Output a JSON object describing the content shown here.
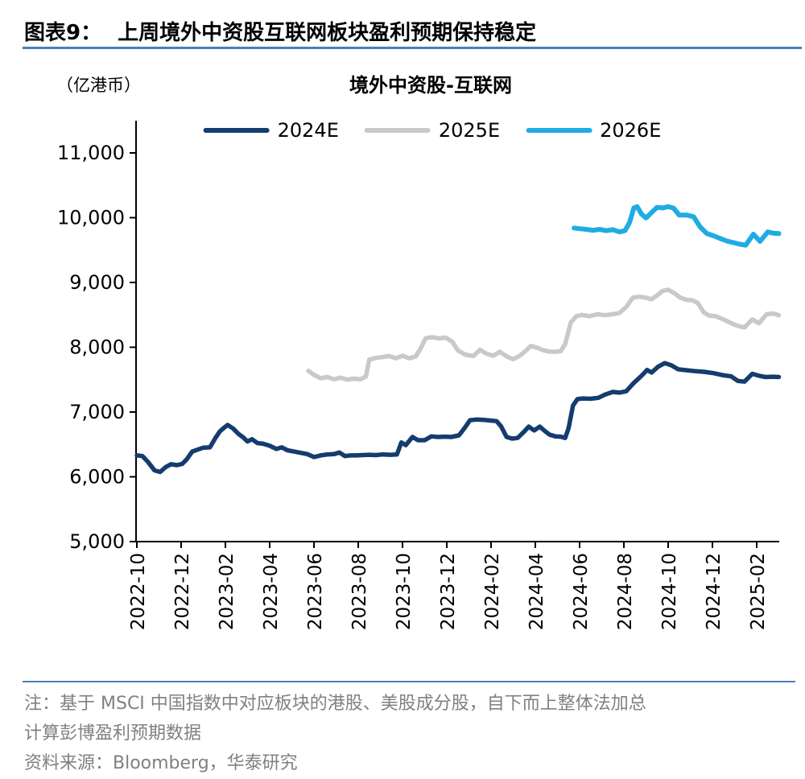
{
  "figure": {
    "label": "图表9：",
    "title": "上周境外中资股互联网板块盈利预期保持稳定"
  },
  "chart": {
    "unit_label": "（亿港币）",
    "title": "境外中资股-互联网",
    "legend": [
      {
        "name": "2024E",
        "color": "#143C6E"
      },
      {
        "name": "2025E",
        "color": "#C9C9C9"
      },
      {
        "name": "2026E",
        "color": "#1FACE3"
      }
    ]
  },
  "chart_data": {
    "type": "line",
    "title": "境外中资股-互联网",
    "unit": "亿港币",
    "legend_position": "top",
    "grid": false,
    "x_axis": {
      "tick_labels": [
        "2022-10",
        "2022-12",
        "2023-02",
        "2023-04",
        "2023-06",
        "2023-08",
        "2023-10",
        "2023-12",
        "2024-02",
        "2024-04",
        "2024-06",
        "2024-08",
        "2024-10",
        "2024-12",
        "2025-02"
      ],
      "tick_interval_months": 2,
      "range_months": [
        0,
        29
      ]
    },
    "y_axis": {
      "ticks": [
        11000,
        10000,
        9000,
        8000,
        7000,
        6000,
        5000
      ],
      "tick_labels": [
        "11,000",
        "10,000",
        "9,000",
        "8,000",
        "7,000",
        "6,000",
        "5,000"
      ],
      "range": [
        5000,
        11400
      ]
    },
    "series": [
      {
        "name": "2024E",
        "color": "#143C6E",
        "width": 5.5,
        "points": [
          [
            0.0,
            6330
          ],
          [
            0.25,
            6320
          ],
          [
            0.5,
            6230
          ],
          [
            0.8,
            6100
          ],
          [
            1.05,
            6075
          ],
          [
            1.3,
            6150
          ],
          [
            1.55,
            6195
          ],
          [
            1.8,
            6180
          ],
          [
            2.05,
            6200
          ],
          [
            2.25,
            6270
          ],
          [
            2.5,
            6390
          ],
          [
            2.75,
            6420
          ],
          [
            3.0,
            6450
          ],
          [
            3.3,
            6455
          ],
          [
            3.55,
            6600
          ],
          [
            3.75,
            6700
          ],
          [
            3.95,
            6760
          ],
          [
            4.1,
            6800
          ],
          [
            4.35,
            6745
          ],
          [
            4.6,
            6660
          ],
          [
            4.8,
            6610
          ],
          [
            5.0,
            6545
          ],
          [
            5.2,
            6580
          ],
          [
            5.45,
            6520
          ],
          [
            5.7,
            6510
          ],
          [
            6.0,
            6480
          ],
          [
            6.3,
            6430
          ],
          [
            6.55,
            6455
          ],
          [
            6.8,
            6410
          ],
          [
            7.1,
            6390
          ],
          [
            7.4,
            6370
          ],
          [
            7.7,
            6350
          ],
          [
            8.0,
            6305
          ],
          [
            8.3,
            6330
          ],
          [
            8.6,
            6345
          ],
          [
            8.9,
            6350
          ],
          [
            9.15,
            6375
          ],
          [
            9.4,
            6320
          ],
          [
            9.65,
            6330
          ],
          [
            9.9,
            6330
          ],
          [
            10.2,
            6335
          ],
          [
            10.5,
            6340
          ],
          [
            10.8,
            6335
          ],
          [
            11.1,
            6345
          ],
          [
            11.45,
            6340
          ],
          [
            11.75,
            6345
          ],
          [
            11.95,
            6530
          ],
          [
            12.15,
            6490
          ],
          [
            12.45,
            6615
          ],
          [
            12.7,
            6565
          ],
          [
            13.0,
            6565
          ],
          [
            13.3,
            6625
          ],
          [
            13.6,
            6615
          ],
          [
            13.9,
            6620
          ],
          [
            14.2,
            6615
          ],
          [
            14.55,
            6640
          ],
          [
            14.8,
            6750
          ],
          [
            15.05,
            6875
          ],
          [
            15.35,
            6885
          ],
          [
            15.65,
            6880
          ],
          [
            15.95,
            6870
          ],
          [
            16.25,
            6860
          ],
          [
            16.45,
            6780
          ],
          [
            16.7,
            6615
          ],
          [
            16.95,
            6590
          ],
          [
            17.2,
            6600
          ],
          [
            17.5,
            6700
          ],
          [
            17.7,
            6775
          ],
          [
            17.95,
            6715
          ],
          [
            18.2,
            6775
          ],
          [
            18.45,
            6700
          ],
          [
            18.65,
            6650
          ],
          [
            18.9,
            6625
          ],
          [
            19.15,
            6620
          ],
          [
            19.35,
            6600
          ],
          [
            19.5,
            6750
          ],
          [
            19.7,
            7100
          ],
          [
            19.9,
            7200
          ],
          [
            20.15,
            7210
          ],
          [
            20.5,
            7205
          ],
          [
            20.85,
            7220
          ],
          [
            21.15,
            7270
          ],
          [
            21.5,
            7310
          ],
          [
            21.8,
            7300
          ],
          [
            22.1,
            7320
          ],
          [
            22.45,
            7450
          ],
          [
            22.8,
            7560
          ],
          [
            23.05,
            7650
          ],
          [
            23.25,
            7610
          ],
          [
            23.55,
            7700
          ],
          [
            23.85,
            7755
          ],
          [
            24.15,
            7720
          ],
          [
            24.45,
            7660
          ],
          [
            24.85,
            7645
          ],
          [
            25.25,
            7630
          ],
          [
            25.65,
            7620
          ],
          [
            26.05,
            7600
          ],
          [
            26.45,
            7570
          ],
          [
            26.85,
            7550
          ],
          [
            27.15,
            7480
          ],
          [
            27.45,
            7470
          ],
          [
            27.8,
            7590
          ],
          [
            28.1,
            7560
          ],
          [
            28.4,
            7540
          ],
          [
            28.75,
            7545
          ],
          [
            29.0,
            7540
          ]
        ]
      },
      {
        "name": "2025E",
        "color": "#C9C9C9",
        "width": 5.5,
        "points": [
          [
            7.75,
            7635
          ],
          [
            8.0,
            7575
          ],
          [
            8.3,
            7520
          ],
          [
            8.6,
            7540
          ],
          [
            8.9,
            7505
          ],
          [
            9.2,
            7530
          ],
          [
            9.5,
            7500
          ],
          [
            9.8,
            7515
          ],
          [
            10.1,
            7505
          ],
          [
            10.35,
            7550
          ],
          [
            10.5,
            7810
          ],
          [
            10.8,
            7835
          ],
          [
            11.1,
            7850
          ],
          [
            11.4,
            7865
          ],
          [
            11.7,
            7830
          ],
          [
            12.0,
            7870
          ],
          [
            12.3,
            7830
          ],
          [
            12.6,
            7860
          ],
          [
            12.8,
            7970
          ],
          [
            13.05,
            8140
          ],
          [
            13.35,
            8155
          ],
          [
            13.65,
            8135
          ],
          [
            13.95,
            8150
          ],
          [
            14.25,
            8085
          ],
          [
            14.5,
            7950
          ],
          [
            14.85,
            7885
          ],
          [
            15.2,
            7865
          ],
          [
            15.5,
            7960
          ],
          [
            15.8,
            7900
          ],
          [
            16.1,
            7870
          ],
          [
            16.4,
            7930
          ],
          [
            16.7,
            7860
          ],
          [
            17.0,
            7815
          ],
          [
            17.3,
            7870
          ],
          [
            17.55,
            7940
          ],
          [
            17.8,
            8020
          ],
          [
            18.1,
            7990
          ],
          [
            18.35,
            7955
          ],
          [
            18.6,
            7935
          ],
          [
            18.9,
            7930
          ],
          [
            19.15,
            7940
          ],
          [
            19.35,
            8050
          ],
          [
            19.6,
            8380
          ],
          [
            19.85,
            8480
          ],
          [
            20.1,
            8500
          ],
          [
            20.45,
            8480
          ],
          [
            20.8,
            8510
          ],
          [
            21.15,
            8495
          ],
          [
            21.5,
            8510
          ],
          [
            21.8,
            8530
          ],
          [
            22.1,
            8620
          ],
          [
            22.4,
            8765
          ],
          [
            22.7,
            8780
          ],
          [
            23.0,
            8765
          ],
          [
            23.25,
            8740
          ],
          [
            23.5,
            8800
          ],
          [
            23.75,
            8870
          ],
          [
            24.0,
            8888
          ],
          [
            24.3,
            8830
          ],
          [
            24.55,
            8765
          ],
          [
            24.85,
            8730
          ],
          [
            25.1,
            8725
          ],
          [
            25.35,
            8680
          ],
          [
            25.6,
            8540
          ],
          [
            25.85,
            8490
          ],
          [
            26.15,
            8480
          ],
          [
            26.5,
            8430
          ],
          [
            26.85,
            8370
          ],
          [
            27.15,
            8330
          ],
          [
            27.45,
            8305
          ],
          [
            27.8,
            8430
          ],
          [
            28.1,
            8370
          ],
          [
            28.45,
            8510
          ],
          [
            28.75,
            8520
          ],
          [
            29.0,
            8495
          ]
        ]
      },
      {
        "name": "2026E",
        "color": "#1FACE3",
        "width": 6,
        "points": [
          [
            19.75,
            9840
          ],
          [
            20.0,
            9830
          ],
          [
            20.3,
            9820
          ],
          [
            20.6,
            9805
          ],
          [
            20.9,
            9820
          ],
          [
            21.2,
            9800
          ],
          [
            21.5,
            9815
          ],
          [
            21.8,
            9780
          ],
          [
            22.05,
            9800
          ],
          [
            22.25,
            9920
          ],
          [
            22.45,
            10150
          ],
          [
            22.6,
            10170
          ],
          [
            22.8,
            10055
          ],
          [
            23.0,
            9995
          ],
          [
            23.25,
            10080
          ],
          [
            23.5,
            10160
          ],
          [
            23.75,
            10150
          ],
          [
            24.0,
            10170
          ],
          [
            24.25,
            10145
          ],
          [
            24.5,
            10040
          ],
          [
            24.85,
            10040
          ],
          [
            25.15,
            10015
          ],
          [
            25.45,
            9855
          ],
          [
            25.75,
            9755
          ],
          [
            26.05,
            9720
          ],
          [
            26.35,
            9680
          ],
          [
            26.65,
            9640
          ],
          [
            26.95,
            9615
          ],
          [
            27.25,
            9590
          ],
          [
            27.5,
            9575
          ],
          [
            27.85,
            9745
          ],
          [
            28.15,
            9635
          ],
          [
            28.5,
            9780
          ],
          [
            28.75,
            9760
          ],
          [
            29.0,
            9755
          ]
        ]
      }
    ]
  },
  "notes": {
    "line1": "注：基于 MSCI 中国指数中对应板块的港股、美股成分股，自下而上整体法加总",
    "line2": "计算彭博盈利预期数据",
    "source": "资料来源：Bloomberg，华泰研究"
  },
  "colors": {
    "divider": "#4A7EBB",
    "axis": "#000000",
    "note_text": "#808080"
  }
}
